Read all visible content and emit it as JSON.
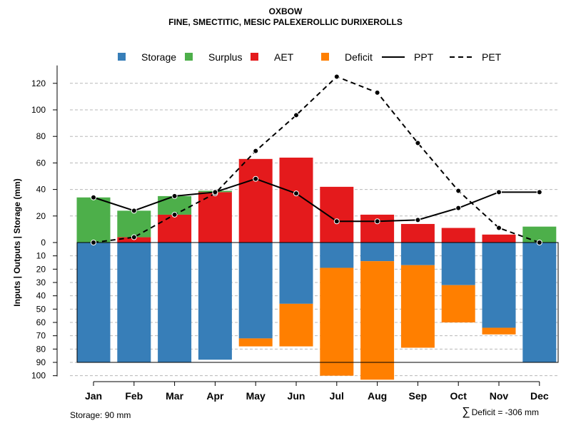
{
  "chart_data": {
    "type": "bar",
    "title": "OXBOW",
    "subtitle": "FINE, SMECTITIC, MESIC PALEXEROLLIC DURIXEROLLS",
    "ylabel": "Inputs | Outputs | Storage    (mm)",
    "categories": [
      "Jan",
      "Feb",
      "Mar",
      "Apr",
      "May",
      "Jun",
      "Jul",
      "Aug",
      "Sep",
      "Oct",
      "Nov",
      "Dec"
    ],
    "upper_ticks": [
      "0",
      "20",
      "40",
      "60",
      "80",
      "100",
      "120"
    ],
    "lower_ticks": [
      "10",
      "20",
      "30",
      "40",
      "50",
      "60",
      "70",
      "80",
      "90",
      "100"
    ],
    "upper_ylim": [
      0,
      130
    ],
    "lower_ylim": [
      0,
      100
    ],
    "legend": {
      "placement": "top",
      "items": [
        {
          "label": "Storage",
          "kind": "box",
          "color": "#377EB8"
        },
        {
          "label": "Surplus",
          "kind": "box",
          "color": "#4DAF4A"
        },
        {
          "label": "AET",
          "kind": "box",
          "color": "#E41A1C"
        },
        {
          "label": "Deficit",
          "kind": "box",
          "color": "#FF7F00"
        },
        {
          "label": "PPT",
          "kind": "solid-line",
          "color": "#000000"
        },
        {
          "label": "PET",
          "kind": "dashed-line",
          "color": "#000000"
        }
      ]
    },
    "series": [
      {
        "name": "AET",
        "values": [
          0,
          4,
          21,
          38,
          63,
          64,
          42,
          21,
          14,
          11,
          6,
          0
        ]
      },
      {
        "name": "Surplus",
        "values": [
          34,
          20,
          14,
          1,
          0,
          0,
          0,
          0,
          0,
          0,
          0,
          12
        ]
      },
      {
        "name": "Storage",
        "values": [
          90,
          90,
          90,
          88,
          72,
          46,
          19,
          14,
          17,
          32,
          64,
          90
        ]
      },
      {
        "name": "Deficit",
        "values": [
          0,
          0,
          0,
          0,
          6,
          32,
          81,
          89,
          62,
          28,
          5,
          0
        ]
      },
      {
        "name": "PPT",
        "values": [
          34,
          24,
          35,
          38,
          48,
          37,
          16,
          16,
          17,
          26,
          38,
          38
        ]
      },
      {
        "name": "PET",
        "values": [
          0,
          4,
          21,
          37,
          69,
          96,
          125,
          113,
          75,
          39,
          11,
          0
        ]
      }
    ],
    "storage_capacity": 90,
    "storage_label": "Storage: 90 mm",
    "deficit_total_label": "Deficit = -306 mm"
  }
}
